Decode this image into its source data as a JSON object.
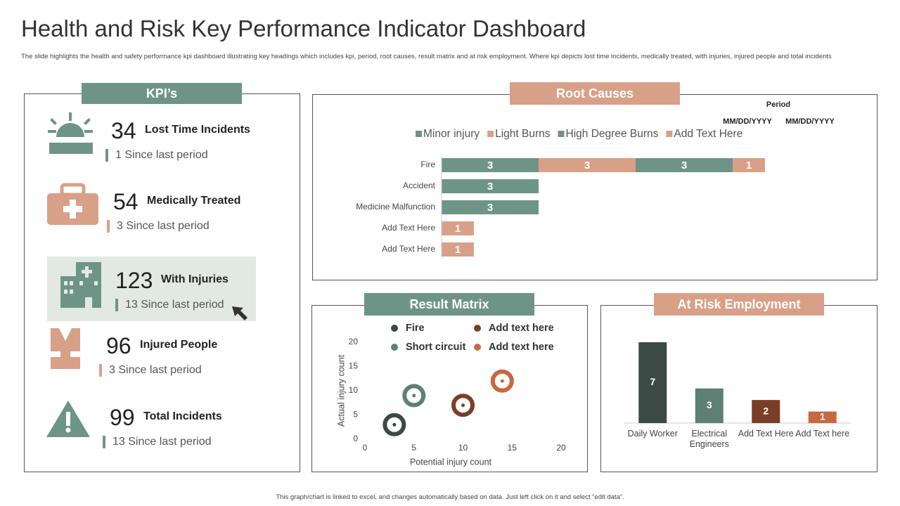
{
  "header": {
    "title": "Health and Risk Key Performance Indicator Dashboard",
    "subtitle": "The slide highlights the health and safety performance kpi dashboard illustrating key headings which includes kpi, period, root causes, result matrix and at risk employment.  Where kpi depicts lost time  incidents, medically treated, with injuries, injured people and total incidents"
  },
  "kpis": {
    "title": "KPI’s",
    "items": [
      {
        "value": 34,
        "label": "Lost Time Incidents",
        "note": "1 Since last period",
        "color": "#6e9488"
      },
      {
        "value": 54,
        "label": "Medically Treated",
        "note": "3 Since last period",
        "color": "#d9a088"
      },
      {
        "value": 123,
        "label": "With Injuries",
        "note": "13 Since last period",
        "color": "#6e9488"
      },
      {
        "value": 96,
        "label": "Injured People",
        "note": "3 Since last period",
        "color": "#d9a088"
      },
      {
        "value": 99,
        "label": "Total Incidents",
        "note": "13 Since last period",
        "color": "#6e9488"
      }
    ]
  },
  "chart_data": [
    {
      "type": "stacked-bar-h",
      "title": "Root Causes",
      "period_label": "Period",
      "period_dates": [
        "MM/DD/YYYY",
        "MM/DD/YYYY"
      ],
      "categories": [
        "Fire",
        "Accident",
        "Medicine Malfunction",
        "Add Text Here",
        "Add Text Here"
      ],
      "series": [
        {
          "name": "Minor injury",
          "color": "#6e9488",
          "values": [
            3,
            3,
            3,
            null,
            null
          ]
        },
        {
          "name": "Light Burns",
          "color": "#d9a088",
          "values": [
            3,
            null,
            null,
            1,
            1
          ]
        },
        {
          "name": "High Degree Burns",
          "color": "#6e9488",
          "values": [
            3,
            null,
            null,
            null,
            null
          ]
        },
        {
          "name": "Add Text Here",
          "color": "#d9a088",
          "values": [
            1,
            null,
            null,
            null,
            null
          ]
        }
      ],
      "xlim": [
        0,
        10
      ]
    },
    {
      "type": "scatter",
      "title": "Result Matrix",
      "x_label": "Potential injury count",
      "y_label": "Actual injury count",
      "series": [
        {
          "name": "Fire",
          "color": "#3b4a45",
          "x": [
            3
          ],
          "values": [
            3
          ]
        },
        {
          "name": "Add  text here",
          "color": "#7a3e26",
          "x": [
            10
          ],
          "values": [
            7
          ]
        },
        {
          "name": "Short circuit",
          "color": "#5e7f74",
          "x": [
            5
          ],
          "values": [
            9
          ]
        },
        {
          "name": "Add  text here",
          "color": "#c8683f",
          "x": [
            14
          ],
          "values": [
            12
          ]
        }
      ],
      "xlim": [
        0,
        20
      ],
      "xticks": [
        0,
        5,
        10,
        15,
        20
      ],
      "ylim": [
        0,
        20
      ],
      "yticks": [
        0,
        5,
        10,
        15,
        20
      ]
    },
    {
      "type": "bar",
      "title": "At Risk Employment",
      "categories": [
        "Daily Worker",
        "Electrical Engineers",
        "Add Text Here",
        "Add Text here"
      ],
      "values": [
        7,
        3,
        2,
        1
      ],
      "colors": [
        "#3b4a45",
        "#5e7f74",
        "#7a3e26",
        "#c8683f"
      ],
      "ylim": [
        0,
        7
      ]
    }
  ]
}
